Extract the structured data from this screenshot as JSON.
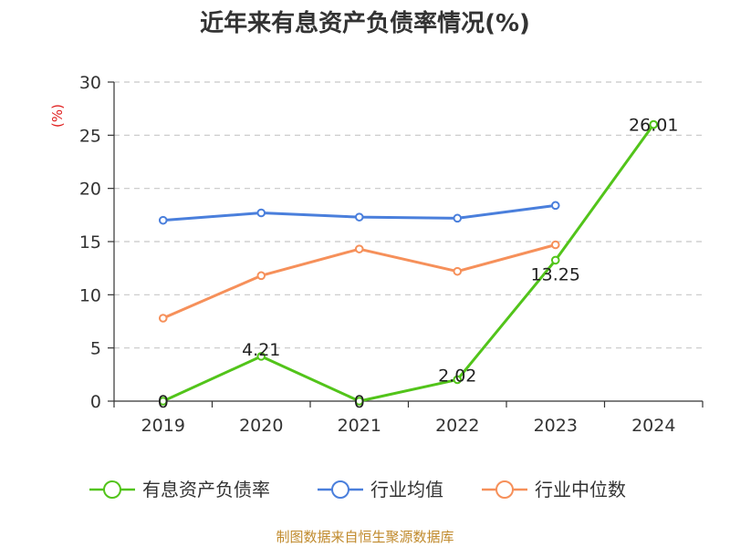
{
  "chart_data": {
    "type": "line",
    "title": "近年来有息资产负债率情况(%)",
    "unit_label": "(%)",
    "categories": [
      "2019",
      "2020",
      "2021",
      "2022",
      "2023",
      "2024"
    ],
    "ylim": [
      0,
      30
    ],
    "yticks": [
      0,
      5,
      10,
      15,
      20,
      25,
      30
    ],
    "grid": true,
    "legend_position": "bottom",
    "series": [
      {
        "name": "有息资产负债率",
        "color": "#52c41a",
        "values": [
          0,
          4.21,
          0,
          2.02,
          13.25,
          26.01
        ],
        "labels": [
          "0",
          "4.21",
          "0",
          "2.02",
          "13.25",
          "26.01"
        ]
      },
      {
        "name": "行业均值",
        "color": "#4a7fdc",
        "values": [
          17.0,
          17.7,
          17.3,
          17.2,
          18.4,
          null
        ]
      },
      {
        "name": "行业中位数",
        "color": "#f6905a",
        "values": [
          7.8,
          11.8,
          14.3,
          12.2,
          14.7,
          null
        ]
      }
    ],
    "source": "制图数据来自恒生聚源数据库"
  }
}
